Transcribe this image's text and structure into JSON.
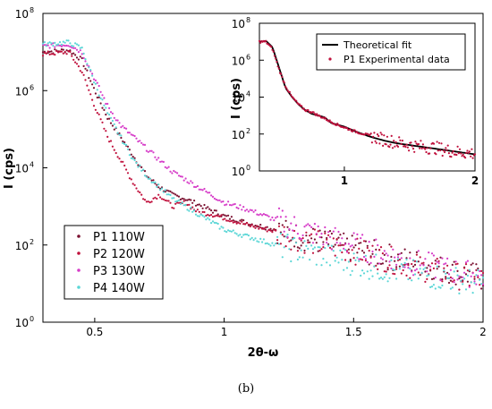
{
  "caption": "(b)",
  "chart_data": [
    {
      "type": "scatter",
      "xlabel": "2θ-ω",
      "ylabel": "I (cps)",
      "xlim": [
        0.3,
        2.0
      ],
      "ylim_log10": [
        0,
        8
      ],
      "yscale": "log",
      "x_ticks": [
        0.5,
        1,
        1.5,
        2
      ],
      "x_tick_labels": [
        "0.5",
        "1",
        "1.5",
        "2"
      ],
      "y_ticks_log10": [
        0,
        2,
        4,
        6,
        8
      ],
      "y_tick_labels": [
        "10",
        "10",
        "10",
        "10",
        "10"
      ],
      "y_tick_exponents": [
        "0",
        "2",
        "4",
        "6",
        "8"
      ],
      "legend_position": "bottom-left",
      "series": [
        {
          "name": "P1 110W",
          "color": "#7a1030",
          "x": [
            0.3,
            0.4,
            0.45,
            0.5,
            0.55,
            0.6,
            0.65,
            0.7,
            0.75,
            0.8,
            0.85,
            0.9,
            0.95,
            1.0,
            1.1,
            1.2,
            1.3,
            1.4,
            1.5,
            1.6,
            1.7,
            1.8,
            1.9,
            2.0
          ],
          "y_log10": [
            7.0,
            7.05,
            6.8,
            6.0,
            5.3,
            4.8,
            4.3,
            3.8,
            3.5,
            3.3,
            3.2,
            3.05,
            2.9,
            2.75,
            2.55,
            2.4,
            2.2,
            2.05,
            1.9,
            1.75,
            1.6,
            1.45,
            1.3,
            1.15
          ]
        },
        {
          "name": "P2 120W",
          "color": "#c0103c",
          "x": [
            0.3,
            0.4,
            0.45,
            0.5,
            0.55,
            0.6,
            0.65,
            0.7,
            0.75,
            0.8,
            0.85,
            0.9,
            0.95,
            1.0,
            1.1,
            1.2,
            1.3,
            1.4,
            1.5,
            1.6,
            1.7,
            1.8,
            1.9,
            2.0
          ],
          "y_log10": [
            6.95,
            7.0,
            6.5,
            5.6,
            4.8,
            4.2,
            3.6,
            3.1,
            3.3,
            3.0,
            3.1,
            2.85,
            2.8,
            2.7,
            2.5,
            2.35,
            2.15,
            2.0,
            1.85,
            1.7,
            1.5,
            1.35,
            1.2,
            1.1
          ]
        },
        {
          "name": "P3 130W",
          "color": "#d63cc8",
          "x": [
            0.3,
            0.4,
            0.45,
            0.5,
            0.55,
            0.6,
            0.65,
            0.7,
            0.75,
            0.8,
            0.85,
            0.9,
            0.95,
            1.0,
            1.1,
            1.2,
            1.3,
            1.4,
            1.5,
            1.6,
            1.7,
            1.8,
            1.9,
            2.0
          ],
          "y_log10": [
            7.15,
            7.2,
            7.0,
            6.3,
            5.6,
            5.1,
            4.8,
            4.5,
            4.2,
            3.9,
            3.7,
            3.5,
            3.3,
            3.1,
            2.9,
            2.65,
            2.4,
            2.2,
            2.0,
            1.8,
            1.6,
            1.45,
            1.3,
            1.2
          ]
        },
        {
          "name": "P4 140W",
          "color": "#5ad6d6",
          "x": [
            0.3,
            0.4,
            0.45,
            0.5,
            0.55,
            0.6,
            0.65,
            0.7,
            0.75,
            0.8,
            0.85,
            0.9,
            0.95,
            1.0,
            1.1,
            1.2,
            1.3,
            1.4,
            1.5,
            1.6,
            1.7,
            1.8,
            1.9,
            2.0
          ],
          "y_log10": [
            7.2,
            7.25,
            7.1,
            6.2,
            5.4,
            4.8,
            4.2,
            3.8,
            3.5,
            3.2,
            3.0,
            2.8,
            2.6,
            2.4,
            2.2,
            2.0,
            1.85,
            1.7,
            1.55,
            1.4,
            1.3,
            1.2,
            1.1,
            1.0
          ]
        }
      ]
    },
    {
      "type": "line",
      "xlabel": "",
      "ylabel": "I (cps)",
      "xlim": [
        0.35,
        2.0
      ],
      "ylim_log10": [
        0,
        8
      ],
      "yscale": "log",
      "x_ticks": [
        1,
        2
      ],
      "x_tick_labels": [
        "1",
        "2"
      ],
      "y_ticks_log10": [
        0,
        2,
        4,
        6,
        8
      ],
      "y_tick_labels": [
        "10",
        "10",
        "10",
        "10",
        "10"
      ],
      "y_tick_exponents": [
        "0",
        "2",
        "4",
        "6",
        "8"
      ],
      "legend_position": "top-right",
      "series": [
        {
          "name": "Theoretical fit",
          "color": "#000000",
          "x": [
            0.35,
            0.4,
            0.45,
            0.5,
            0.55,
            0.6,
            0.65,
            0.7,
            0.75,
            0.8,
            0.85,
            0.9,
            0.95,
            1.0,
            1.1,
            1.2,
            1.3,
            1.4,
            1.5,
            1.6,
            1.7,
            1.8,
            1.9,
            2.0
          ],
          "y_log10": [
            7.0,
            7.05,
            6.7,
            5.6,
            4.5,
            4.0,
            3.6,
            3.3,
            3.1,
            3.0,
            2.9,
            2.6,
            2.5,
            2.4,
            2.1,
            1.85,
            1.65,
            1.5,
            1.4,
            1.3,
            1.2,
            1.1,
            1.0,
            0.9
          ]
        },
        {
          "name": "P1 Experimental data",
          "color": "#c0103c",
          "x": [
            0.35,
            0.4,
            0.45,
            0.5,
            0.55,
            0.6,
            0.65,
            0.7,
            0.75,
            0.8,
            0.85,
            0.9,
            0.95,
            1.0,
            1.1,
            1.2,
            1.3,
            1.4,
            1.5,
            1.6,
            1.7,
            1.8,
            1.9,
            2.0
          ],
          "y_log10": [
            7.0,
            7.0,
            6.6,
            5.5,
            4.6,
            4.0,
            3.6,
            3.3,
            3.2,
            3.0,
            2.85,
            2.65,
            2.5,
            2.35,
            2.1,
            1.9,
            1.7,
            1.55,
            1.4,
            1.3,
            1.25,
            1.1,
            1.0,
            0.95
          ]
        }
      ]
    }
  ]
}
